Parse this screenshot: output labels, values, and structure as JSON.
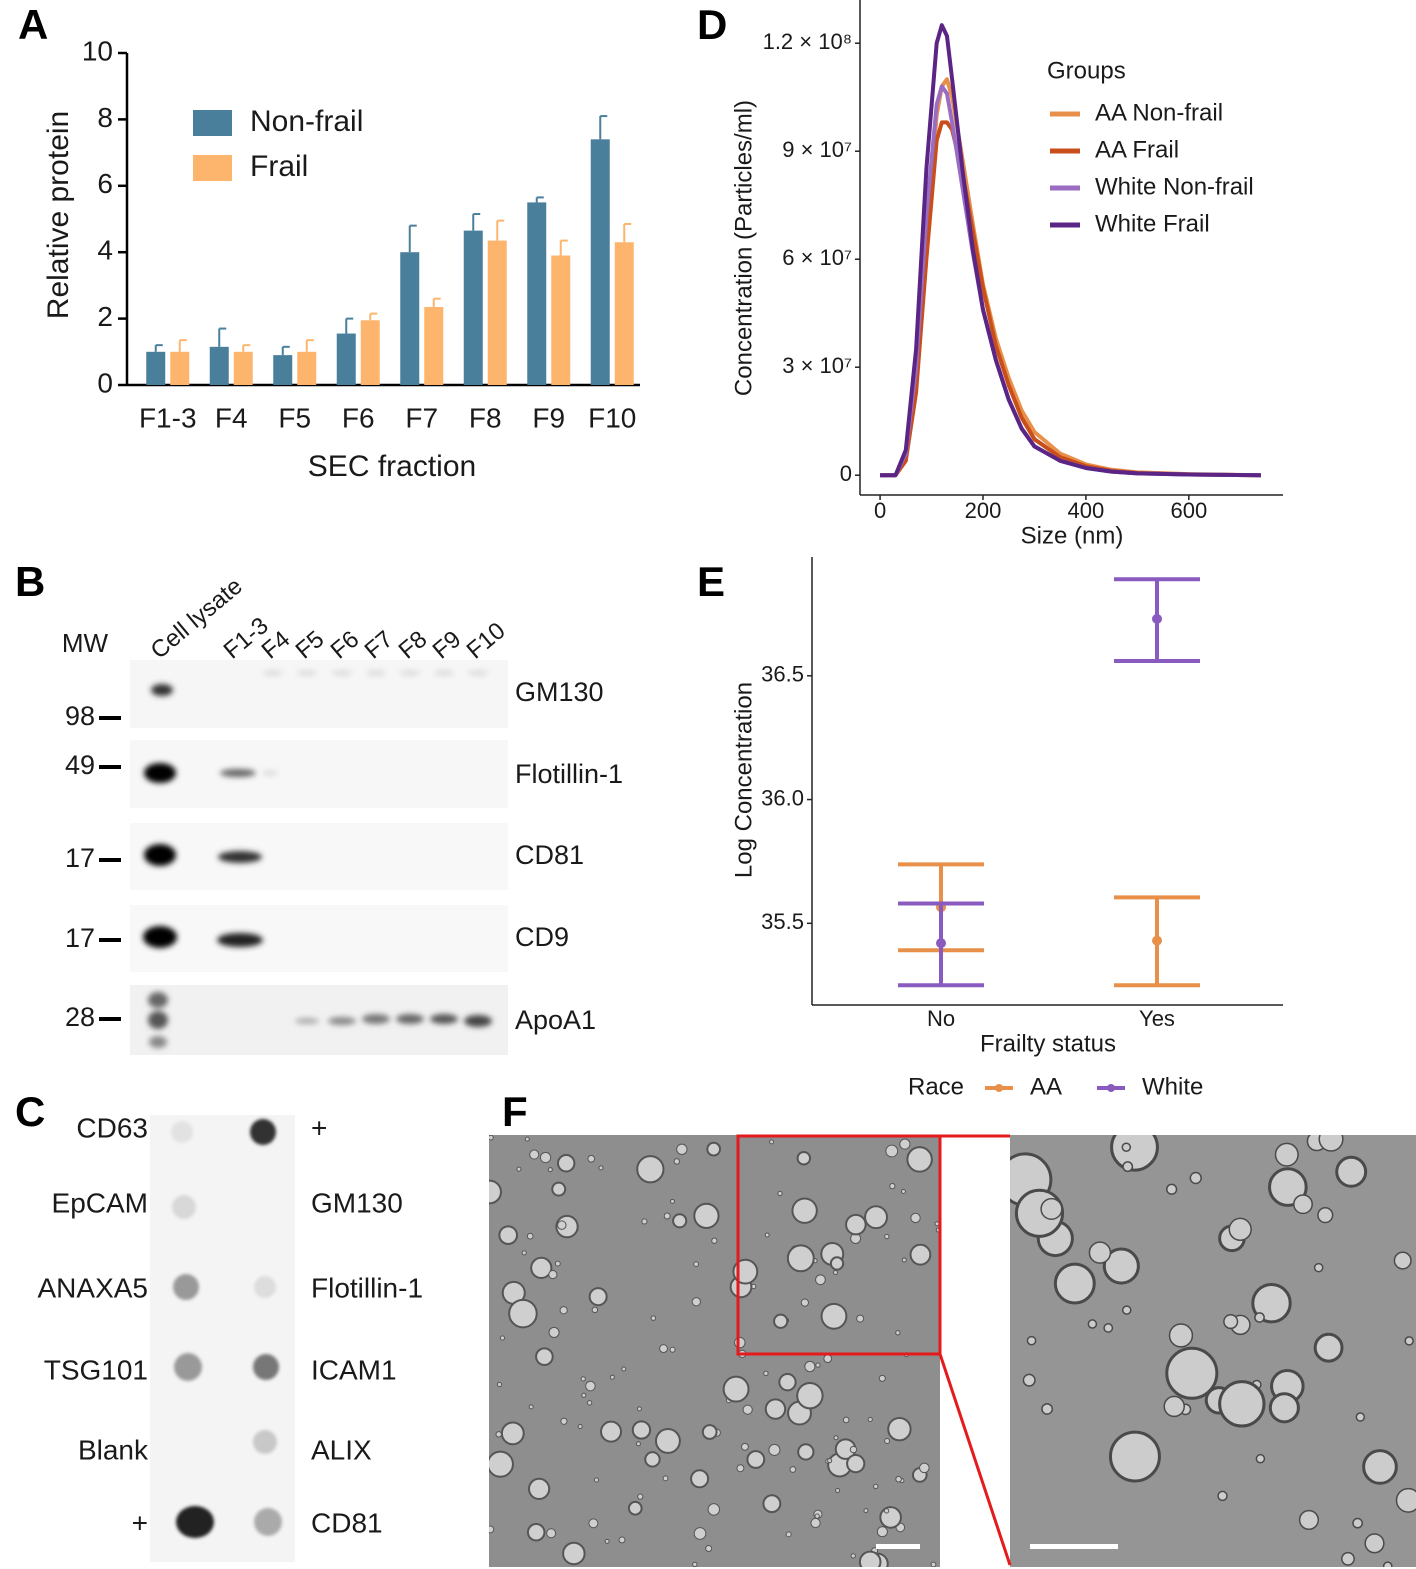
{
  "panel_labels": [
    "A",
    "B",
    "C",
    "D",
    "E",
    "F"
  ],
  "chart_data": [
    {
      "type": "bar",
      "xlabel": "SEC fraction",
      "ylabel": "Relative protein",
      "categories": [
        "F1-3",
        "F4",
        "F5",
        "F6",
        "F7",
        "F8",
        "F9",
        "F10"
      ],
      "series": [
        {
          "name": "Non-frail",
          "color": "#4a7f9c",
          "values": [
            1.0,
            1.15,
            0.9,
            1.55,
            4.0,
            4.65,
            5.5,
            7.4
          ],
          "errors": [
            0.2,
            0.55,
            0.25,
            0.45,
            0.8,
            0.5,
            0.15,
            0.7
          ]
        },
        {
          "name": "Frail",
          "color": "#fdb56d",
          "values": [
            1.0,
            1.0,
            1.0,
            1.95,
            2.35,
            4.35,
            3.9,
            4.3
          ],
          "errors": [
            0.35,
            0.2,
            0.35,
            0.2,
            0.25,
            0.6,
            0.45,
            0.55
          ]
        }
      ],
      "ylim": [
        0,
        10
      ],
      "yticks": [
        0,
        2,
        4,
        6,
        8,
        10
      ],
      "grid": false,
      "legend": "upper-left"
    },
    {
      "type": "line",
      "xlabel": "Size (nm)",
      "ylabel": "Concentration (Particles/ml)",
      "legend_title": "Groups",
      "x": [
        0,
        30,
        50,
        70,
        90,
        110,
        120,
        130,
        140,
        160,
        180,
        200,
        225,
        250,
        275,
        300,
        350,
        400,
        450,
        500,
        600,
        740
      ],
      "series": [
        {
          "name": "AA Non-frail",
          "color": "#e8904a",
          "values": [
            0,
            0,
            5000000,
            25000000,
            65000000,
            100000000,
            108000000,
            110000000,
            105000000,
            88000000,
            70000000,
            53000000,
            38000000,
            27000000,
            18000000,
            12000000,
            6000000,
            3000000,
            1500000,
            800000,
            300000,
            0
          ]
        },
        {
          "name": "AA Frail",
          "color": "#c84f1c",
          "values": [
            0,
            0,
            4000000,
            23000000,
            60000000,
            93000000,
            98000000,
            98000000,
            96000000,
            84000000,
            68000000,
            52000000,
            36000000,
            25000000,
            16000000,
            10000000,
            5000000,
            2500000,
            1200000,
            600000,
            200000,
            0
          ]
        },
        {
          "name": "White Non-frail",
          "color": "#9a6cc2",
          "values": [
            0,
            0,
            6000000,
            30000000,
            72000000,
            103000000,
            108000000,
            106000000,
            98000000,
            80000000,
            62000000,
            46000000,
            32000000,
            21000000,
            13000000,
            8000000,
            4000000,
            2000000,
            1000000,
            500000,
            200000,
            0
          ]
        },
        {
          "name": "White Frail",
          "color": "#5a2585",
          "values": [
            0,
            0,
            7000000,
            35000000,
            85000000,
            120000000,
            125000000,
            122000000,
            110000000,
            85000000,
            63000000,
            46000000,
            32000000,
            21000000,
            13000000,
            8000000,
            4000000,
            2000000,
            1000000,
            500000,
            200000,
            0
          ]
        }
      ],
      "xlim": [
        -39,
        783
      ],
      "xticks": [
        0,
        200,
        400,
        600
      ],
      "ylim": [
        -5500000,
        132000000
      ],
      "yticks": [
        0,
        {
          "value": 30000000,
          "label": "3 × 10⁷"
        },
        {
          "value": 60000000,
          "label": "6 × 10⁷"
        },
        {
          "value": 90000000,
          "label": "9 × 10⁷"
        },
        {
          "value": 120000000,
          "label": "1.2 × 10⁸"
        }
      ],
      "grid": false,
      "legend": "upper-right"
    },
    {
      "type": "errorbar",
      "xlabel": "Frailty status",
      "ylabel": "Log Concentration",
      "legend_title": "Race",
      "categories": [
        "No",
        "Yes"
      ],
      "series": [
        {
          "name": "AA",
          "color": "#e8904a",
          "values": [
            35.565,
            35.43
          ],
          "lower": [
            35.391,
            35.25
          ],
          "upper": [
            35.738,
            35.605
          ]
        },
        {
          "name": "White",
          "color": "#8a5bbf",
          "values": [
            35.42,
            36.73
          ],
          "lower": [
            35.25,
            36.56
          ],
          "upper": [
            35.58,
            36.89
          ]
        }
      ],
      "ylim": [
        35.17,
        36.98
      ],
      "yticks": [
        35.5,
        {
          "value": 36,
          "label": "36.0"
        },
        36.5
      ],
      "grid": false,
      "legend": "bottom"
    }
  ],
  "western_blot": {
    "mw_header": "MW",
    "lanes": [
      "Cell lysate",
      "F1-3",
      "F4",
      "F5",
      "F6",
      "F7",
      "F8",
      "F9",
      "F10"
    ],
    "rows": [
      {
        "marker": "98",
        "protein": "GM130"
      },
      {
        "marker": "49",
        "protein": "Flotillin-1"
      },
      {
        "marker": "17",
        "protein": "CD81"
      },
      {
        "marker": "17",
        "protein": "CD9"
      },
      {
        "marker": "28",
        "protein": "ApoA1"
      }
    ]
  },
  "dot_blot": {
    "left": [
      "CD63",
      "EpCAM",
      "ANAXA5",
      "TSG101",
      "Blank",
      "+"
    ],
    "right": [
      "+",
      "GM130",
      "Flotillin-1",
      "ICAM1",
      "ALIX",
      "CD81"
    ]
  }
}
